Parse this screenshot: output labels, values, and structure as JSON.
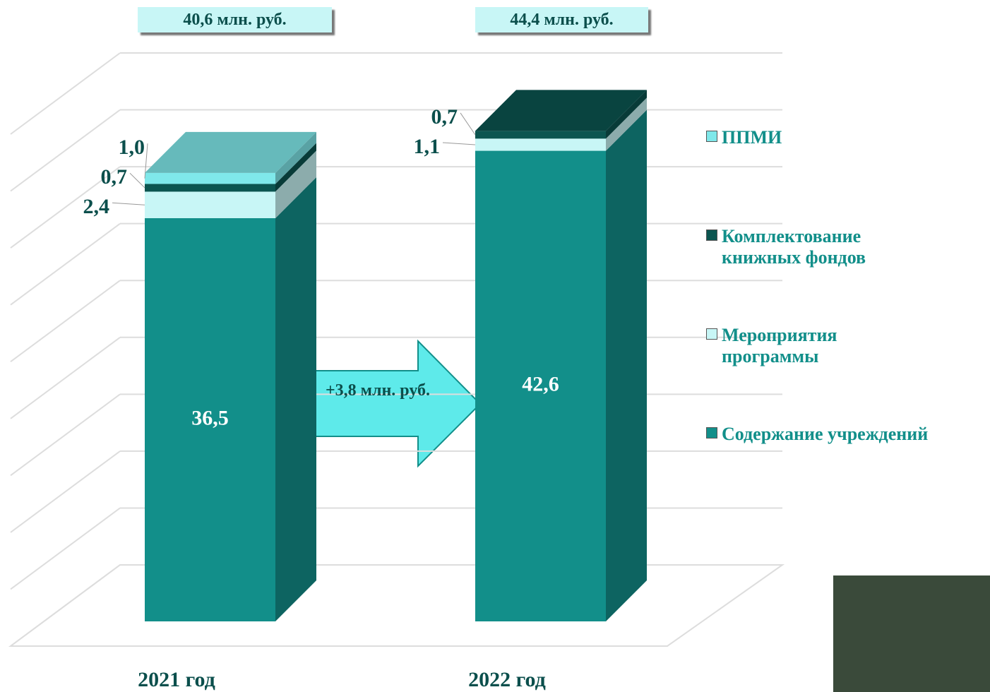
{
  "chart_data": {
    "type": "bar3d_stacked",
    "categories": [
      "2021 год",
      "2022 год"
    ],
    "totals": [
      {
        "value": 40.6,
        "label": "40,6 млн. руб."
      },
      {
        "value": 44.4,
        "label": "44,4 млн. руб."
      }
    ],
    "series": [
      {
        "name": "Содержание учреждений",
        "color": "#128f8a",
        "values": [
          36.5,
          42.6
        ],
        "value_labels": [
          "36,5",
          "42,6"
        ]
      },
      {
        "name": "Мероприятия программы",
        "color": "#c8f6f6",
        "values": [
          2.4,
          1.1
        ],
        "value_labels": [
          "2,4",
          "1,1"
        ]
      },
      {
        "name": "Комплектование книжных фондов",
        "color": "#0b5550",
        "values": [
          0.7,
          0.7
        ],
        "value_labels": [
          "0,7",
          "0,7"
        ]
      },
      {
        "name": "ППМИ",
        "color": "#7fe8ea",
        "values": [
          1.0,
          null
        ],
        "value_labels": [
          "1,0",
          null
        ]
      }
    ],
    "annotation": "+3,8 млн. руб.",
    "ylim": [
      0,
      45
    ],
    "yticks": [
      0,
      5,
      10,
      15,
      20,
      25,
      30,
      35,
      40,
      45
    ],
    "grid": true
  }
}
